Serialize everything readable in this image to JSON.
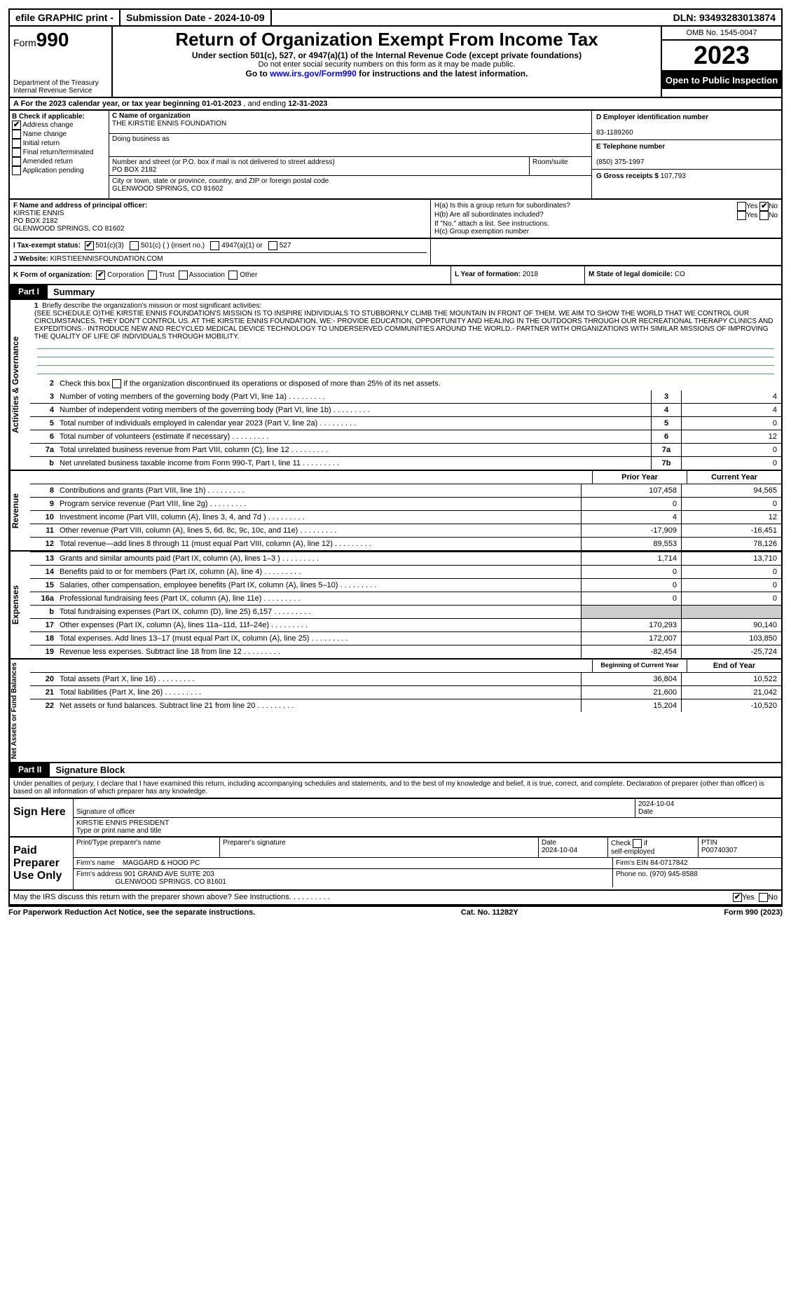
{
  "topbar": {
    "efile": "efile GRAPHIC print -",
    "submission": "Submission Date - 2024-10-09",
    "dln": "DLN: 93493283013874"
  },
  "header": {
    "form_label": "Form",
    "form_num": "990",
    "title": "Return of Organization Exempt From Income Tax",
    "sub": "Under section 501(c), 527, or 4947(a)(1) of the Internal Revenue Code (except private foundations)",
    "sub2": "Do not enter social security numbers on this form as it may be made public.",
    "sub3_pre": "Go to ",
    "sub3_link": "www.irs.gov/Form990",
    "sub3_post": " for instructions and the latest information.",
    "dept": "Department of the Treasury",
    "irs": "Internal Revenue Service",
    "omb": "OMB No. 1545-0047",
    "year": "2023",
    "open": "Open to Public Inspection"
  },
  "row_a": {
    "a_pre": "A For the 2023 calendar year, or tax year beginning ",
    "begin": "01-01-2023",
    "mid": " , and ending ",
    "end": "12-31-2023"
  },
  "col_b": {
    "title": "B Check if applicable:",
    "opts": [
      "Address change",
      "Name change",
      "Initial return",
      "Final return/terminated",
      "Amended return",
      "Application pending"
    ]
  },
  "col_c": {
    "name_lbl": "C Name of organization",
    "name": "THE KIRSTIE ENNIS FOUNDATION",
    "dba_lbl": "Doing business as",
    "addr_lbl": "Number and street (or P.O. box if mail is not delivered to street address)",
    "room_lbl": "Room/suite",
    "addr": "PO BOX 2182",
    "city_lbl": "City or town, state or province, country, and ZIP or foreign postal code",
    "city": "GLENWOOD SPRINGS, CO  81602"
  },
  "col_d": {
    "ein_lbl": "D Employer identification number",
    "ein": "83-1189260",
    "tel_lbl": "E Telephone number",
    "tel": "(850) 375-1997",
    "gross_lbl": "G Gross receipts $ ",
    "gross": "107,793"
  },
  "row_f": {
    "f_lbl": "F Name and address of principal officer:",
    "name": "KIRSTIE ENNIS",
    "addr": "PO BOX 2182",
    "city": "GLENWOOD SPRINGS, CO  81602"
  },
  "row_h": {
    "ha": "H(a)  Is this a group return for subordinates?",
    "hb": "H(b)  Are all subordinates included?",
    "hb2": "If \"No,\" attach a list. See instructions.",
    "hc": "H(c)  Group exemption number "
  },
  "row_i": {
    "lbl": "I Tax-exempt status:",
    "o1": "501(c)(3)",
    "o2": "501(c) (   ) (insert no.)",
    "o3": "4947(a)(1) or",
    "o4": "527"
  },
  "row_j": {
    "lbl": "J Website: ",
    "val": "KIRSTIEENNISFOUNDATION.COM"
  },
  "row_k": {
    "lbl": "K Form of organization:",
    "opts": [
      "Corporation",
      "Trust",
      "Association",
      "Other"
    ]
  },
  "row_l": {
    "lbl": "L Year of formation: ",
    "val": "2018"
  },
  "row_m": {
    "lbl": "M State of legal domicile: ",
    "val": "CO"
  },
  "part1": {
    "tab": "Part I",
    "title": "Summary",
    "vtabs": [
      "Activities & Governance",
      "Revenue",
      "Expenses",
      "Net Assets or Fund Balances"
    ],
    "line1_lbl": "Briefly describe the organization's mission or most significant activities:",
    "mission": "(SEE SCHEDULE O)THE KIRSTIE ENNIS FOUNDATION'S MISSION IS TO INSPIRE INDIVIDUALS TO STUBBORNLY CLIMB THE MOUNTAIN IN FRONT OF THEM. WE AIM TO SHOW THE WORLD THAT WE CONTROL OUR CIRCUMSTANCES, THEY DON'T CONTROL US. AT THE KIRSTIE ENNIS FOUNDATION, WE:- PROVIDE EDUCATION, OPPORTUNITY AND HEALING IN THE OUTDOORS THROUGH OUR RECREATIONAL THERAPY CLINICS AND EXPEDITIONS.- INTRODUCE NEW AND RECYCLED MEDICAL DEVICE TECHNOLOGY TO UNDERSERVED COMMUNITIES AROUND THE WORLD.- PARTNER WITH ORGANIZATIONS WITH SIMILAR MISSIONS OF IMPROVING THE QUALITY OF LIFE OF INDIVIDUALS THROUGH MOBILITY.",
    "line2": "Check this box     if the organization discontinued its operations or disposed of more than 25% of its net assets.",
    "lines_gov": [
      {
        "n": "3",
        "t": "Number of voting members of the governing body (Part VI, line 1a)",
        "b": "3",
        "v": "4"
      },
      {
        "n": "4",
        "t": "Number of independent voting members of the governing body (Part VI, line 1b)",
        "b": "4",
        "v": "4"
      },
      {
        "n": "5",
        "t": "Total number of individuals employed in calendar year 2023 (Part V, line 2a)",
        "b": "5",
        "v": "0"
      },
      {
        "n": "6",
        "t": "Total number of volunteers (estimate if necessary)",
        "b": "6",
        "v": "12"
      },
      {
        "n": "7a",
        "t": "Total unrelated business revenue from Part VIII, column (C), line 12",
        "b": "7a",
        "v": "0"
      },
      {
        "n": "b",
        "t": "Net unrelated business taxable income from Form 990-T, Part I, line 11",
        "b": "7b",
        "v": "0"
      }
    ],
    "col_prior": "Prior Year",
    "col_curr": "Current Year",
    "lines_rev": [
      {
        "n": "8",
        "t": "Contributions and grants (Part VIII, line 1h)",
        "p": "107,458",
        "c": "94,565"
      },
      {
        "n": "9",
        "t": "Program service revenue (Part VIII, line 2g)",
        "p": "0",
        "c": "0"
      },
      {
        "n": "10",
        "t": "Investment income (Part VIII, column (A), lines 3, 4, and 7d )",
        "p": "4",
        "c": "12"
      },
      {
        "n": "11",
        "t": "Other revenue (Part VIII, column (A), lines 5, 6d, 8c, 9c, 10c, and 11e)",
        "p": "-17,909",
        "c": "-16,451"
      },
      {
        "n": "12",
        "t": "Total revenue—add lines 8 through 11 (must equal Part VIII, column (A), line 12)",
        "p": "89,553",
        "c": "78,126"
      }
    ],
    "lines_exp": [
      {
        "n": "13",
        "t": "Grants and similar amounts paid (Part IX, column (A), lines 1–3 )",
        "p": "1,714",
        "c": "13,710"
      },
      {
        "n": "14",
        "t": "Benefits paid to or for members (Part IX, column (A), line 4)",
        "p": "0",
        "c": "0"
      },
      {
        "n": "15",
        "t": "Salaries, other compensation, employee benefits (Part IX, column (A), lines 5–10)",
        "p": "0",
        "c": "0"
      },
      {
        "n": "16a",
        "t": "Professional fundraising fees (Part IX, column (A), line 11e)",
        "p": "0",
        "c": "0"
      },
      {
        "n": "b",
        "t": "Total fundraising expenses (Part IX, column (D), line 25) 6,157",
        "p": "grey",
        "c": "grey"
      },
      {
        "n": "17",
        "t": "Other expenses (Part IX, column (A), lines 11a–11d, 11f–24e)",
        "p": "170,293",
        "c": "90,140"
      },
      {
        "n": "18",
        "t": "Total expenses. Add lines 13–17 (must equal Part IX, column (A), line 25)",
        "p": "172,007",
        "c": "103,850"
      },
      {
        "n": "19",
        "t": "Revenue less expenses. Subtract line 18 from line 12",
        "p": "-82,454",
        "c": "-25,724"
      }
    ],
    "col_boy": "Beginning of Current Year",
    "col_eoy": "End of Year",
    "lines_net": [
      {
        "n": "20",
        "t": "Total assets (Part X, line 16)",
        "p": "36,804",
        "c": "10,522"
      },
      {
        "n": "21",
        "t": "Total liabilities (Part X, line 26)",
        "p": "21,600",
        "c": "21,042"
      },
      {
        "n": "22",
        "t": "Net assets or fund balances. Subtract line 21 from line 20",
        "p": "15,204",
        "c": "-10,520"
      }
    ]
  },
  "part2": {
    "tab": "Part II",
    "title": "Signature Block",
    "decl": "Under penalties of perjury, I declare that I have examined this return, including accompanying schedules and statements, and to the best of my knowledge and belief, it is true, correct, and complete. Declaration of preparer (other than officer) is based on all information of which preparer has any knowledge."
  },
  "sign": {
    "here": "Sign Here",
    "sig_lbl": "Signature of officer",
    "name": "KIRSTIE ENNIS PRESIDENT",
    "type_lbl": "Type or print name and title",
    "date": "2024-10-04",
    "date_lbl": "Date"
  },
  "paid": {
    "here": "Paid Preparer Use Only",
    "print_lbl": "Print/Type preparer's name",
    "sig_lbl": "Preparer's signature",
    "date_lbl": "Date",
    "date": "2024-10-04",
    "check_lbl": "Check      if self-employed",
    "ptin_lbl": "PTIN",
    "ptin": "P00740307",
    "firm_lbl": "Firm's name    ",
    "firm": "MAGGARD & HOOD PC",
    "ein_lbl": "Firm's EIN ",
    "ein": "84-0717842",
    "addr_lbl": "Firm's address ",
    "addr": "901 GRAND AVE SUITE 203",
    "city": "GLENWOOD SPRINGS, CO  81601",
    "phone_lbl": "Phone no. ",
    "phone": "(970) 945-8588"
  },
  "discuss": "May the IRS discuss this return with the preparer shown above? See Instructions.",
  "footer": {
    "left": "For Paperwork Reduction Act Notice, see the separate instructions.",
    "mid": "Cat. No. 11282Y",
    "right": "Form 990 (2023)"
  }
}
